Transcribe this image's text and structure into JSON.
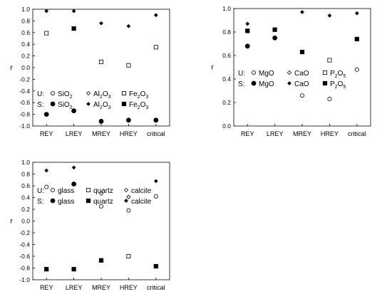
{
  "chart_data": [
    {
      "type": "scatter",
      "ylabel": "r",
      "ylim": [
        -1.0,
        1.0
      ],
      "yticks": [
        "1.0",
        "0.8",
        "0.6",
        "0.4",
        "0.2",
        "0.0",
        "-0.2",
        "-0.4",
        "-0.6",
        "-0.8",
        "-1.0"
      ],
      "categories": [
        "REY",
        "LREY",
        "MREY",
        "HREY",
        "critical"
      ],
      "legend": {
        "rows": [
          {
            "prefix": "U:",
            "items": [
              {
                "marker": "open-circle",
                "label": "SiO",
                "sub": "2"
              },
              {
                "marker": "open-diamond",
                "label": "Al",
                "sub": "2",
                "label2": "O",
                "sub2": "3"
              },
              {
                "marker": "open-square",
                "label": "Fe",
                "sub": "2",
                "label2": "O",
                "sub2": "3"
              }
            ]
          },
          {
            "prefix": "S:",
            "items": [
              {
                "marker": "filled-circle",
                "label": "SiO",
                "sub": "2"
              },
              {
                "marker": "filled-diamond",
                "label": "Al",
                "sub": "2",
                "label2": "O",
                "sub2": "3"
              },
              {
                "marker": "filled-square",
                "label": "Fe",
                "sub": "2",
                "label2": "O",
                "sub2": "3"
              }
            ]
          }
        ]
      },
      "series": [
        {
          "marker": "open-square",
          "values": [
            0.59,
            null,
            0.1,
            0.04,
            0.35
          ]
        },
        {
          "marker": "filled-diamond",
          "values": [
            0.97,
            0.97,
            0.76,
            0.71,
            0.9
          ]
        },
        {
          "marker": "filled-square",
          "values": [
            null,
            0.67,
            null,
            null,
            null
          ]
        },
        {
          "marker": "filled-circle",
          "values": [
            -0.8,
            -0.74,
            -0.92,
            -0.9,
            -0.9
          ]
        }
      ]
    },
    {
      "type": "scatter",
      "ylabel": "r",
      "ylim": [
        0.0,
        1.0
      ],
      "yticks": [
        "1.0",
        "0.8",
        "0.6",
        "0.4",
        "0.2",
        "0.0"
      ],
      "categories": [
        "REY",
        "LREY",
        "MREY",
        "HREY",
        "critical"
      ],
      "legend": {
        "rows": [
          {
            "prefix": "U:",
            "items": [
              {
                "marker": "open-circle",
                "label": "MgO"
              },
              {
                "marker": "open-diamond",
                "label": "CaO"
              },
              {
                "marker": "open-square",
                "label": "P",
                "sub": "2",
                "label2": "O",
                "sub2": "5"
              }
            ]
          },
          {
            "prefix": "S:",
            "items": [
              {
                "marker": "filled-circle",
                "label": "MgO"
              },
              {
                "marker": "filled-diamond",
                "label": "CaO"
              },
              {
                "marker": "filled-square",
                "label": "P",
                "sub": "2",
                "label2": "O",
                "sub2": "5"
              }
            ]
          }
        ]
      },
      "series": [
        {
          "marker": "filled-diamond",
          "values": [
            0.87,
            null,
            0.97,
            0.94,
            0.96
          ]
        },
        {
          "marker": "filled-square",
          "values": [
            0.81,
            0.82,
            0.63,
            null,
            0.74
          ]
        },
        {
          "marker": "filled-circle",
          "values": [
            0.68,
            0.75,
            null,
            null,
            null
          ]
        },
        {
          "marker": "open-square",
          "values": [
            null,
            null,
            null,
            0.56,
            null
          ]
        },
        {
          "marker": "open-circle",
          "values": [
            null,
            null,
            0.26,
            0.23,
            0.48
          ]
        }
      ]
    },
    {
      "type": "scatter",
      "ylabel": "r",
      "ylim": [
        -1.0,
        1.0
      ],
      "yticks": [
        "1.0",
        "0.8",
        "0.6",
        "0.4",
        "0.2",
        "0.0",
        "-0.2",
        "-0.4",
        "-0.6",
        "-0.8",
        "-1.0"
      ],
      "categories": [
        "REY",
        "LREY",
        "MREY",
        "HREY",
        "critical"
      ],
      "legend": {
        "rows": [
          {
            "prefix": "U:",
            "items": [
              {
                "marker": "open-circle",
                "label": "glass"
              },
              {
                "marker": "open-square",
                "label": "quartz"
              },
              {
                "marker": "open-diamond",
                "label": "calcite"
              }
            ]
          },
          {
            "prefix": "S:",
            "items": [
              {
                "marker": "filled-circle",
                "label": "glass"
              },
              {
                "marker": "filled-square",
                "label": "quartz"
              },
              {
                "marker": "filled-diamond",
                "label": "calcite"
              }
            ]
          }
        ]
      },
      "series": [
        {
          "marker": "filled-diamond",
          "values": [
            0.86,
            0.91,
            null,
            null,
            0.68
          ]
        },
        {
          "marker": "filled-circle",
          "values": [
            null,
            0.63,
            null,
            null,
            null
          ]
        },
        {
          "marker": "open-circle",
          "values": [
            0.58,
            null,
            0.25,
            0.18,
            0.42
          ]
        },
        {
          "marker": "open-diamond",
          "values": [
            null,
            null,
            0.47,
            0.41,
            null
          ]
        },
        {
          "marker": "open-square",
          "values": [
            null,
            null,
            null,
            -0.6,
            null
          ]
        },
        {
          "marker": "filled-square",
          "values": [
            -0.82,
            -0.82,
            -0.67,
            null,
            -0.77
          ]
        }
      ]
    }
  ]
}
